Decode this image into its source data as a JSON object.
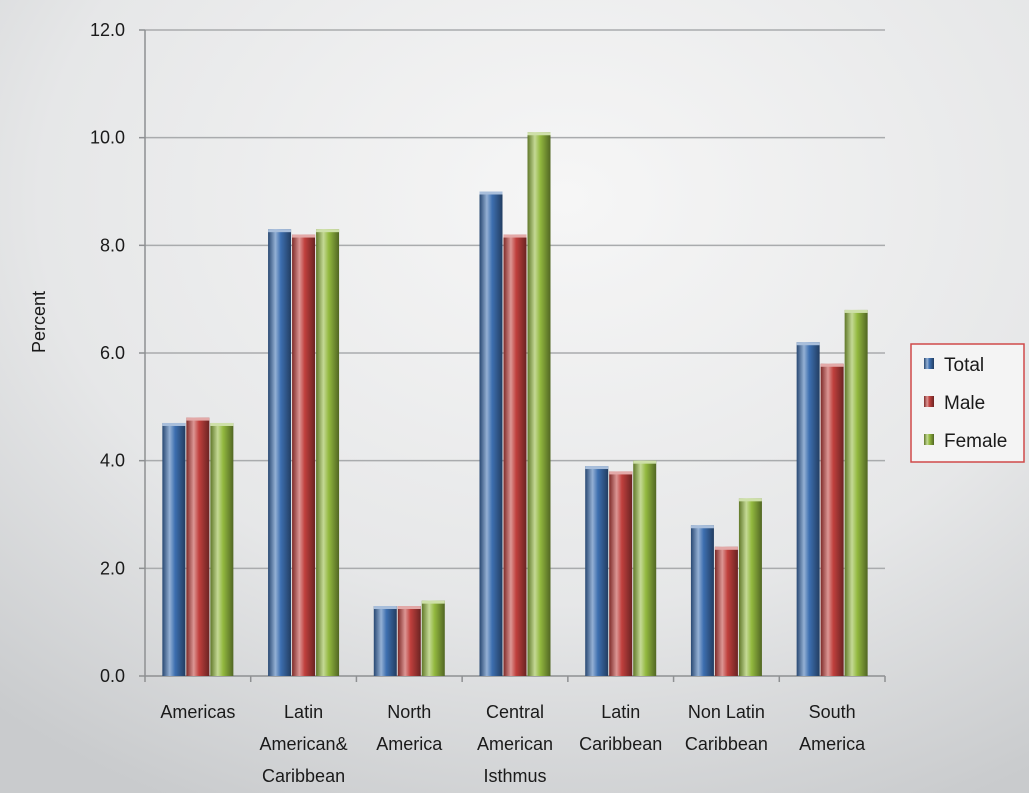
{
  "chart_data": {
    "type": "bar",
    "title": "",
    "xlabel": "",
    "ylabel": "Percent",
    "ylim": [
      0,
      12
    ],
    "ytick_step": 2,
    "ytick_labels": [
      "0.0",
      "2.0",
      "4.0",
      "6.0",
      "8.0",
      "10.0",
      "12.0"
    ],
    "grid": true,
    "legend_position": "right",
    "categories": [
      [
        "Americas"
      ],
      [
        "Latin",
        "American&",
        "Caribbean"
      ],
      [
        "North",
        "America"
      ],
      [
        "Central",
        "American",
        "Isthmus"
      ],
      [
        "Latin",
        "Caribbean"
      ],
      [
        "Non Latin",
        "Caribbean"
      ],
      [
        "South",
        "America"
      ]
    ],
    "series": [
      {
        "name": "Total",
        "color": "#3d6fb0",
        "values": [
          4.7,
          8.3,
          1.3,
          9.0,
          3.9,
          2.8,
          6.2
        ]
      },
      {
        "name": "Male",
        "color": "#c0403d",
        "values": [
          4.8,
          8.2,
          1.3,
          8.2,
          3.8,
          2.4,
          5.8
        ]
      },
      {
        "name": "Female",
        "color": "#93b93f",
        "values": [
          4.7,
          8.3,
          1.4,
          10.1,
          4.0,
          3.3,
          6.8
        ]
      }
    ]
  }
}
